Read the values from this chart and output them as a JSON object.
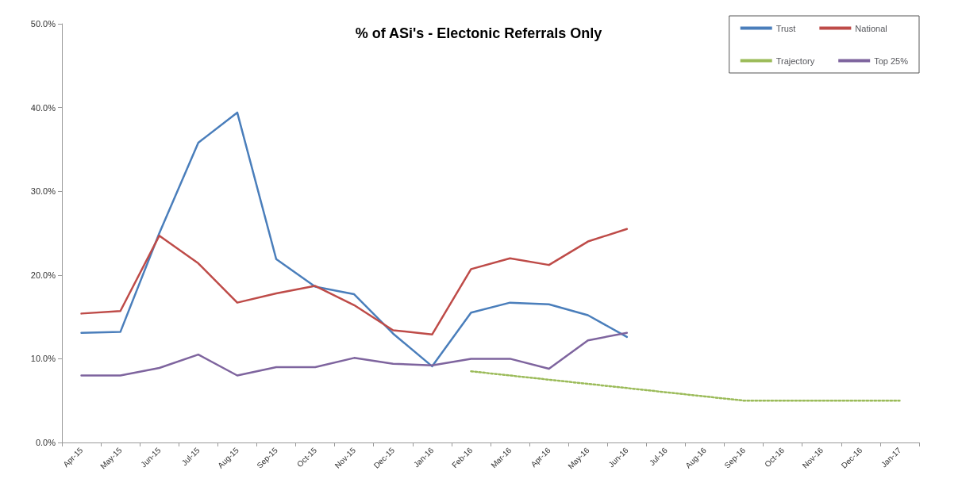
{
  "chart_data": {
    "type": "line",
    "title": "% of ASi's - Electonic Referrals Only",
    "categories": [
      "Apr-15",
      "May-15",
      "Jun-15",
      "Jul-15",
      "Aug-15",
      "Sep-15",
      "Oct-15",
      "Nov-15",
      "Dec-15",
      "Jan-16",
      "Feb-16",
      "Mar-16",
      "Apr-16",
      "May-16",
      "Jun-16",
      "Jul-16",
      "Aug-16",
      "Sep-16",
      "Oct-16",
      "Nov-16",
      "Dec-16",
      "Jan-17"
    ],
    "series": [
      {
        "name": "Trust",
        "color": "#4a7ebb",
        "values": [
          13.1,
          13.2,
          25.0,
          35.8,
          39.4,
          21.9,
          18.6,
          17.7,
          13.0,
          9.1,
          15.5,
          16.7,
          16.5,
          15.2,
          12.6,
          null,
          null,
          null,
          null,
          null,
          null,
          null
        ]
      },
      {
        "name": "National",
        "color": "#be4b48",
        "values": [
          15.4,
          15.7,
          24.7,
          21.4,
          16.7,
          17.8,
          18.7,
          16.4,
          13.4,
          12.9,
          20.7,
          22.0,
          21.2,
          24.0,
          25.5,
          null,
          null,
          null,
          null,
          null,
          null,
          null
        ]
      },
      {
        "name": "Trajectory",
        "color": "#9bbb59",
        "line_style": "dotted",
        "values": [
          null,
          null,
          null,
          null,
          null,
          null,
          null,
          null,
          null,
          null,
          8.5,
          8.0,
          7.5,
          7.0,
          6.5,
          6.0,
          5.5,
          5.0,
          5.0,
          5.0,
          5.0,
          5.0
        ]
      },
      {
        "name": "Top 25%",
        "color": "#7e649e",
        "values": [
          8.0,
          8.0,
          8.9,
          10.5,
          8.0,
          9.0,
          9.0,
          10.1,
          9.4,
          9.2,
          10.0,
          10.0,
          8.8,
          12.2,
          13.1,
          null,
          null,
          null,
          null,
          null,
          null,
          null
        ]
      }
    ],
    "ylim": [
      0,
      50
    ],
    "yticks": [
      {
        "value": 0,
        "label": "0.0%"
      },
      {
        "value": 10,
        "label": "10.0%"
      },
      {
        "value": 20,
        "label": "20.0%"
      },
      {
        "value": 30,
        "label": "30.0%"
      },
      {
        "value": 40,
        "label": "40.0%"
      },
      {
        "value": 50,
        "label": "50.0%"
      }
    ],
    "grid": false,
    "legend": "top right",
    "marker": "none",
    "line_style": "solid"
  }
}
